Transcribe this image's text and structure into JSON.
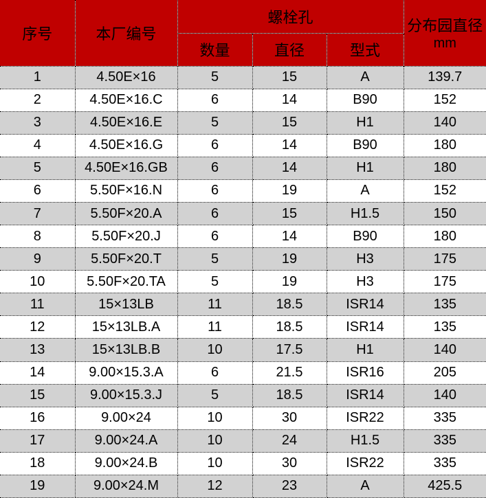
{
  "colors": {
    "header_bg": "#C00000",
    "stripe_bg": "#D2D2D2",
    "row_bg": "#FFFFFF",
    "border": "#000000",
    "text": "#000000"
  },
  "table": {
    "header": {
      "serial": "序号",
      "factory_no": "本厂编号",
      "bolt_holes_group": "螺栓孔",
      "quantity": "数量",
      "diameter": "直径",
      "type": "型式",
      "circle_diameter_line1": "分布园直径",
      "circle_diameter_line2": "mm"
    },
    "rows": [
      {
        "no": "1",
        "factory_no": "4.50E×16",
        "qty": "5",
        "dia": "15",
        "type": "A",
        "circle": "139.7"
      },
      {
        "no": "2",
        "factory_no": "4.50E×16.C",
        "qty": "6",
        "dia": "14",
        "type": "B90",
        "circle": "152"
      },
      {
        "no": "3",
        "factory_no": "4.50E×16.E",
        "qty": "5",
        "dia": "15",
        "type": "H1",
        "circle": "140"
      },
      {
        "no": "4",
        "factory_no": "4.50E×16.G",
        "qty": "6",
        "dia": "14",
        "type": "B90",
        "circle": "180"
      },
      {
        "no": "5",
        "factory_no": "4.50E×16.GB",
        "qty": "6",
        "dia": "14",
        "type": "H1",
        "circle": "180"
      },
      {
        "no": "6",
        "factory_no": "5.50F×16.N",
        "qty": "6",
        "dia": "19",
        "type": "A",
        "circle": "152"
      },
      {
        "no": "7",
        "factory_no": "5.50F×20.A",
        "qty": "6",
        "dia": "15",
        "type": "H1.5",
        "circle": "150"
      },
      {
        "no": "8",
        "factory_no": "5.50F×20.J",
        "qty": "6",
        "dia": "14",
        "type": "B90",
        "circle": "180"
      },
      {
        "no": "9",
        "factory_no": "5.50F×20.T",
        "qty": "5",
        "dia": "19",
        "type": "H3",
        "circle": "175"
      },
      {
        "no": "10",
        "factory_no": "5.50F×20.TA",
        "qty": "5",
        "dia": "19",
        "type": "H3",
        "circle": "175"
      },
      {
        "no": "11",
        "factory_no": "15×13LB",
        "qty": "11",
        "dia": "18.5",
        "type": "ISR14",
        "circle": "135"
      },
      {
        "no": "12",
        "factory_no": "15×13LB.A",
        "qty": "11",
        "dia": "18.5",
        "type": "ISR14",
        "circle": "135"
      },
      {
        "no": "13",
        "factory_no": "15×13LB.B",
        "qty": "10",
        "dia": "17.5",
        "type": "H1",
        "circle": "140"
      },
      {
        "no": "14",
        "factory_no": "9.00×15.3.A",
        "qty": "6",
        "dia": "21.5",
        "type": "ISR16",
        "circle": "205"
      },
      {
        "no": "15",
        "factory_no": "9.00×15.3.J",
        "qty": "5",
        "dia": "18.5",
        "type": "ISR14",
        "circle": "140"
      },
      {
        "no": "16",
        "factory_no": "9.00×24",
        "qty": "10",
        "dia": "30",
        "type": "ISR22",
        "circle": "335"
      },
      {
        "no": "17",
        "factory_no": "9.00×24.A",
        "qty": "10",
        "dia": "24",
        "type": "H1.5",
        "circle": "335"
      },
      {
        "no": "18",
        "factory_no": "9.00×24.B",
        "qty": "10",
        "dia": "30",
        "type": "ISR22",
        "circle": "335"
      },
      {
        "no": "19",
        "factory_no": "9.00×24.M",
        "qty": "12",
        "dia": "23",
        "type": "A",
        "circle": "425.5"
      }
    ]
  },
  "chart_data": {
    "type": "table",
    "title": "",
    "columns": [
      "序号",
      "本厂编号",
      "螺栓孔 数量",
      "螺栓孔 直径",
      "螺栓孔 型式",
      "分布园直径 mm"
    ],
    "rows": [
      [
        "1",
        "4.50E×16",
        "5",
        "15",
        "A",
        "139.7"
      ],
      [
        "2",
        "4.50E×16.C",
        "6",
        "14",
        "B90",
        "152"
      ],
      [
        "3",
        "4.50E×16.E",
        "5",
        "15",
        "H1",
        "140"
      ],
      [
        "4",
        "4.50E×16.G",
        "6",
        "14",
        "B90",
        "180"
      ],
      [
        "5",
        "4.50E×16.GB",
        "6",
        "14",
        "H1",
        "180"
      ],
      [
        "6",
        "5.50F×16.N",
        "6",
        "19",
        "A",
        "152"
      ],
      [
        "7",
        "5.50F×20.A",
        "6",
        "15",
        "H1.5",
        "150"
      ],
      [
        "8",
        "5.50F×20.J",
        "6",
        "14",
        "B90",
        "180"
      ],
      [
        "9",
        "5.50F×20.T",
        "5",
        "19",
        "H3",
        "175"
      ],
      [
        "10",
        "5.50F×20.TA",
        "5",
        "19",
        "H3",
        "175"
      ],
      [
        "11",
        "15×13LB",
        "11",
        "18.5",
        "ISR14",
        "135"
      ],
      [
        "12",
        "15×13LB.A",
        "11",
        "18.5",
        "ISR14",
        "135"
      ],
      [
        "13",
        "15×13LB.B",
        "10",
        "17.5",
        "H1",
        "140"
      ],
      [
        "14",
        "9.00×15.3.A",
        "6",
        "21.5",
        "ISR16",
        "205"
      ],
      [
        "15",
        "9.00×15.3.J",
        "5",
        "18.5",
        "ISR14",
        "140"
      ],
      [
        "16",
        "9.00×24",
        "10",
        "30",
        "ISR22",
        "335"
      ],
      [
        "17",
        "9.00×24.A",
        "10",
        "24",
        "H1.5",
        "335"
      ],
      [
        "18",
        "9.00×24.B",
        "10",
        "30",
        "ISR22",
        "335"
      ],
      [
        "19",
        "9.00×24.M",
        "12",
        "23",
        "A",
        "425.5"
      ]
    ]
  }
}
